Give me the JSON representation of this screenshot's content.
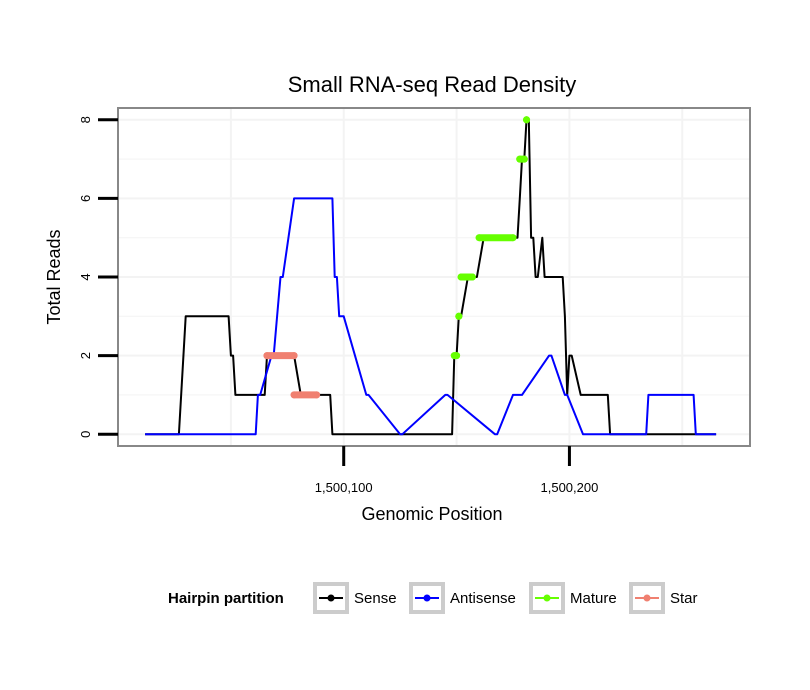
{
  "chart_data": {
    "type": "line",
    "title": "Small RNA-seq Read Density",
    "xlabel": "Genomic Position",
    "ylabel": "Total Reads",
    "xlim": [
      1500000,
      1500280
    ],
    "ylim": [
      -0.3,
      8.3
    ],
    "xticks": [
      {
        "value": 1500100,
        "label": "1,500,100"
      },
      {
        "value": 1500200,
        "label": "1,500,200"
      }
    ],
    "yticks": [
      {
        "value": 0,
        "label": "0"
      },
      {
        "value": 2,
        "label": "2"
      },
      {
        "value": 4,
        "label": "4"
      },
      {
        "value": 6,
        "label": "6"
      },
      {
        "value": 8,
        "label": "8"
      }
    ],
    "grid": true,
    "legend_position": "bottom",
    "legend_title": "Hairpin partition",
    "series": [
      {
        "name": "Sense",
        "color": "#000000",
        "x": [
          1500012,
          1500027,
          1500030,
          1500049,
          1500050,
          1500051,
          1500052,
          1500065,
          1500066,
          1500077,
          1500078,
          1500081,
          1500082,
          1500085,
          1500086,
          1500094,
          1500095,
          1500148,
          1500149,
          1500150,
          1500151,
          1500152,
          1500155,
          1500159,
          1500162,
          1500176,
          1500177,
          1500178,
          1500179,
          1500180,
          1500181,
          1500182,
          1500183,
          1500184,
          1500185,
          1500186,
          1500188,
          1500189,
          1500190,
          1500197,
          1500198,
          1500199,
          1500200,
          1500201,
          1500205,
          1500206,
          1500209,
          1500210,
          1500211,
          1500216,
          1500217,
          1500218,
          1500219,
          1500220,
          1500265
        ],
        "y": [
          0,
          0,
          3,
          3,
          2,
          2,
          1,
          1,
          2,
          2,
          2,
          1,
          1,
          1,
          1,
          1,
          0,
          0,
          2,
          2,
          3,
          3,
          4,
          4,
          5,
          5,
          5,
          6,
          7,
          7,
          8,
          8,
          5,
          5,
          4,
          4,
          5,
          4,
          4,
          4,
          3,
          1,
          2,
          2,
          1,
          1,
          1,
          1,
          1,
          1,
          1,
          0,
          0,
          0,
          0
        ]
      },
      {
        "name": "Antisense",
        "color": "#0000ff",
        "x": [
          1500012,
          1500061,
          1500062,
          1500063,
          1500068,
          1500069,
          1500072,
          1500073,
          1500078,
          1500080,
          1500082,
          1500084,
          1500092,
          1500094,
          1500095,
          1500096,
          1500097,
          1500098,
          1500100,
          1500110,
          1500111,
          1500125,
          1500126,
          1500145,
          1500146,
          1500167,
          1500168,
          1500175,
          1500176,
          1500178,
          1500179,
          1500191,
          1500192,
          1500198,
          1500199,
          1500206,
          1500207,
          1500234,
          1500235,
          1500255,
          1500256,
          1500265
        ],
        "y": [
          0,
          0,
          1,
          1,
          2,
          2,
          4,
          4,
          6,
          6,
          6,
          6,
          6,
          6,
          6,
          4,
          4,
          3,
          3,
          1,
          1,
          0,
          0,
          1,
          1,
          0,
          0,
          1,
          1,
          1,
          1,
          2,
          2,
          1,
          1,
          0,
          0,
          0,
          1,
          1,
          0,
          0
        ]
      },
      {
        "name": "Mature",
        "color": "#66ff00",
        "segments": [
          {
            "x": [
              1500149,
              1500150
            ],
            "y": [
              2,
              2
            ]
          },
          {
            "x": [
              1500151,
              1500151
            ],
            "y": [
              3,
              3
            ]
          },
          {
            "x": [
              1500152,
              1500157
            ],
            "y": [
              4,
              4
            ]
          },
          {
            "x": [
              1500160,
              1500175
            ],
            "y": [
              5,
              5
            ]
          },
          {
            "x": [
              1500178,
              1500180
            ],
            "y": [
              7,
              7
            ]
          },
          {
            "x": [
              1500181,
              1500181
            ],
            "y": [
              8,
              8
            ]
          }
        ]
      },
      {
        "name": "Star",
        "color": "#f08070",
        "segments": [
          {
            "x": [
              1500066,
              1500078
            ],
            "y": [
              2,
              2
            ]
          },
          {
            "x": [
              1500078,
              1500088
            ],
            "y": [
              1,
              1
            ]
          }
        ]
      }
    ]
  }
}
